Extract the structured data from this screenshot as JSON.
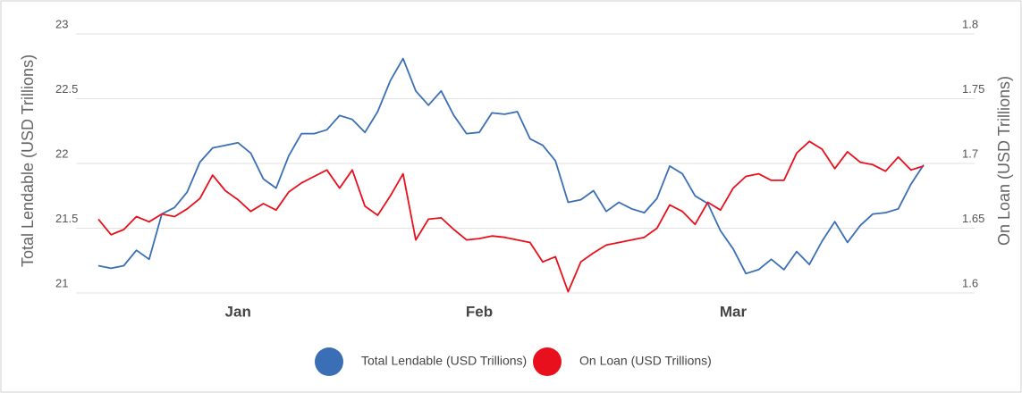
{
  "chart_data": {
    "type": "line",
    "categories": [
      null,
      null,
      null,
      null,
      null,
      null,
      null,
      null,
      null,
      null,
      null,
      "Jan",
      null,
      null,
      null,
      null,
      null,
      null,
      null,
      null,
      null,
      null,
      null,
      null,
      null,
      null,
      null,
      null,
      null,
      null,
      "Feb",
      null,
      null,
      null,
      null,
      null,
      null,
      null,
      null,
      null,
      null,
      null,
      null,
      null,
      null,
      null,
      null,
      null,
      null,
      null,
      "Mar",
      null,
      null,
      null,
      null,
      null,
      null,
      null,
      null,
      null,
      null,
      null,
      null,
      null,
      null,
      null
    ],
    "series": [
      {
        "name": "Total Lendable (USD Trillions)",
        "color": "#3a6fb5",
        "axis": "y",
        "values": [
          21.21,
          21.19,
          21.21,
          21.33,
          21.26,
          21.61,
          21.66,
          21.78,
          22.01,
          22.12,
          22.14,
          22.16,
          22.08,
          21.88,
          21.81,
          22.06,
          22.23,
          22.23,
          22.26,
          22.37,
          22.34,
          22.24,
          22.4,
          22.64,
          22.81,
          22.56,
          22.45,
          22.56,
          22.37,
          22.23,
          22.24,
          22.39,
          22.38,
          22.4,
          22.19,
          22.14,
          22.02,
          21.7,
          21.72,
          21.79,
          21.63,
          21.7,
          21.65,
          21.62,
          21.73,
          21.98,
          21.92,
          21.75,
          21.69,
          21.48,
          21.34,
          21.15,
          21.18,
          21.26,
          21.18,
          21.32,
          21.22,
          21.4,
          21.55,
          21.39,
          21.52,
          21.61,
          21.62,
          21.65,
          21.84,
          21.99
        ]
      },
      {
        "name": "On Loan (USD Trillions)",
        "color": "#e8101c",
        "axis": "y2",
        "values": [
          1.657,
          1.645,
          1.649,
          1.659,
          1.655,
          1.661,
          1.659,
          1.665,
          1.673,
          1.691,
          1.679,
          1.672,
          1.663,
          1.669,
          1.664,
          1.678,
          1.685,
          1.69,
          1.695,
          1.681,
          1.695,
          1.667,
          1.66,
          1.675,
          1.692,
          1.641,
          1.657,
          1.658,
          1.649,
          1.641,
          1.642,
          1.644,
          1.643,
          1.641,
          1.639,
          1.624,
          1.628,
          1.601,
          1.624,
          1.631,
          1.637,
          1.639,
          1.641,
          1.643,
          1.65,
          1.668,
          1.663,
          1.653,
          1.67,
          1.664,
          1.681,
          1.69,
          1.692,
          1.687,
          1.687,
          1.708,
          1.717,
          1.711,
          1.696,
          1.709,
          1.701,
          1.699,
          1.694,
          1.705,
          1.695,
          1.698
        ]
      }
    ],
    "ylabel": "Total Lendable (USD Trillions)",
    "y2label": "On Loan (USD Trillions)",
    "ylim": [
      21,
      23
    ],
    "yticks": [
      21,
      21.5,
      22,
      22.5,
      23
    ],
    "y2lim": [
      1.6,
      1.8
    ],
    "y2ticks": [
      1.6,
      1.65,
      1.7,
      1.75,
      1.8
    ],
    "grid": true,
    "legend": "bottom"
  }
}
